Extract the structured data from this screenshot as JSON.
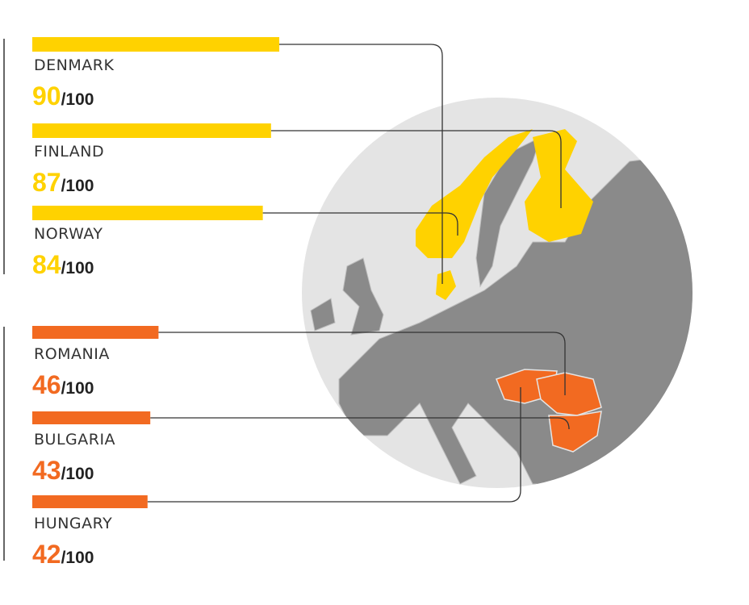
{
  "chart_data": {
    "type": "bar",
    "xlim": [
      0,
      100
    ],
    "score_suffix": "/100",
    "groups": [
      {
        "color": "#ffd200",
        "categories": [
          "DENMARK",
          "FINLAND",
          "NORWAY"
        ],
        "values": [
          90,
          87,
          84
        ]
      },
      {
        "color": "#f26a21",
        "categories": [
          "ROMANIA",
          "BULGARIA",
          "HUNGARY"
        ],
        "values": [
          46,
          43,
          42
        ]
      }
    ]
  }
}
